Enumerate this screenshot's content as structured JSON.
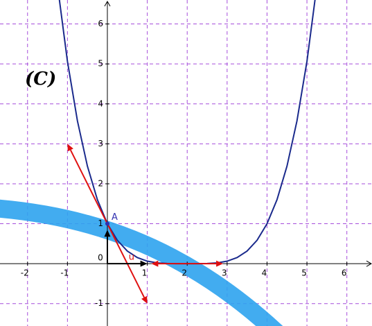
{
  "chart_data": {
    "type": "line",
    "curve_label": "(C)",
    "point_label": "A",
    "vector_label": "u",
    "origin_label": "0",
    "xlim": [
      -2.69,
      6.63
    ],
    "ylim": [
      -1.56,
      6.6
    ],
    "xticks": [
      -2,
      -1,
      1,
      2,
      3,
      4,
      5,
      6
    ],
    "yticks": [
      -1,
      1,
      2,
      3,
      4,
      5,
      6
    ],
    "grid": true,
    "series": [
      {
        "color": "#1a2a8c",
        "x": [
          -1.25,
          -1,
          -0.75,
          -0.5,
          -0.25,
          0,
          0.25,
          0.5,
          0.75,
          1,
          1.25,
          1.5,
          1.75,
          2,
          2.25,
          2.5,
          2.75,
          3,
          3.25,
          3.5,
          3.75,
          4,
          4.25,
          4.5,
          4.75,
          5,
          5.25
        ],
        "values": [
          6.97,
          5.0625,
          3.574,
          2.441,
          1.602,
          1,
          0.586,
          0.316,
          0.153,
          0.0625,
          0.0198,
          0.0039,
          0.0002,
          0,
          0.0002,
          0.0039,
          0.0198,
          0.0625,
          0.153,
          0.316,
          0.586,
          1,
          1.602,
          2.441,
          3.574,
          5.0625,
          6.97
        ]
      }
    ],
    "point": [
      0,
      1
    ],
    "vectors": [
      {
        "color": "#e01010",
        "from": [
          0,
          1
        ],
        "to": [
          -1,
          3
        ]
      },
      {
        "color": "#e01010",
        "from": [
          0,
          1
        ],
        "to": [
          1,
          -1
        ]
      },
      {
        "color": "#e01010",
        "from": [
          2,
          0
        ],
        "to": [
          1.1,
          0
        ]
      },
      {
        "color": "#e01010",
        "from": [
          2,
          0
        ],
        "to": [
          2.9,
          0
        ]
      },
      {
        "color": "#000000",
        "from": [
          0,
          0
        ],
        "to": [
          1,
          0
        ]
      },
      {
        "color": "#000000",
        "from": [
          0,
          0
        ],
        "to": [
          0,
          0.85
        ]
      }
    ]
  }
}
